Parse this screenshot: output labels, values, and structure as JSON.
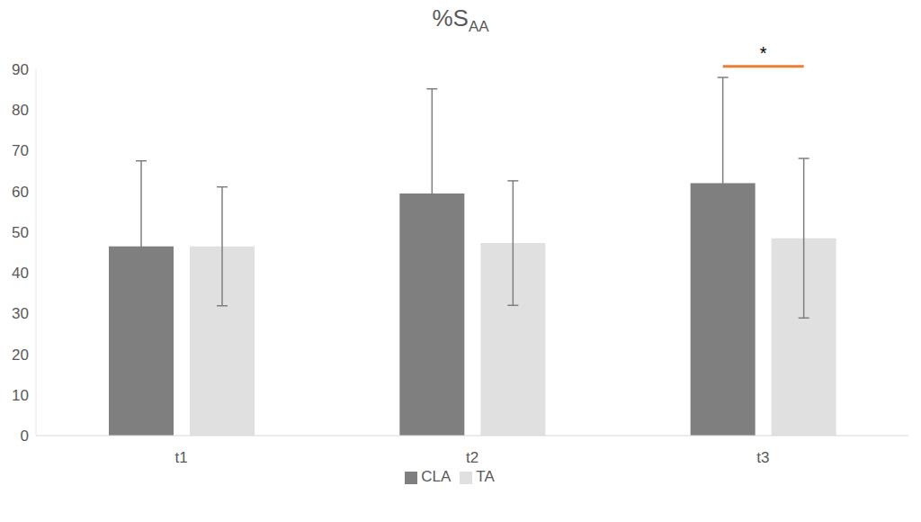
{
  "chart_data": {
    "type": "bar",
    "title": "%SAA",
    "categories": [
      "t1",
      "t2",
      "t3"
    ],
    "series": [
      {
        "name": "CLA",
        "color": "#7f7f7f",
        "values": [
          46.5,
          59.5,
          62
        ],
        "errors": [
          21,
          25.7,
          26
        ]
      },
      {
        "name": "TA",
        "color": "#e0e0e0",
        "values": [
          46.5,
          47.3,
          48.5
        ],
        "errors": [
          14.6,
          15.3,
          19.6
        ]
      }
    ],
    "ylim": [
      0,
      90
    ],
    "yticks": [
      0,
      10,
      20,
      30,
      40,
      50,
      60,
      70,
      80,
      90
    ],
    "grid": false,
    "legend": "bottom",
    "annotations": [
      {
        "text": "*",
        "category": "t3",
        "series": [
          "CLA",
          "TA"
        ],
        "y": 90.7,
        "color": "#ed7d31"
      }
    ]
  }
}
